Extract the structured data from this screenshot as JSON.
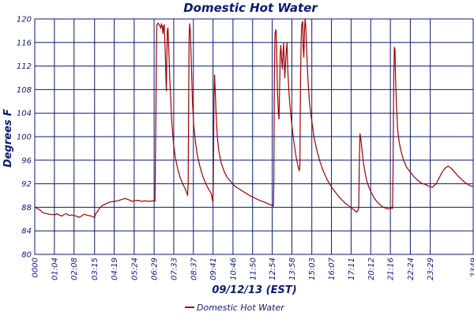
{
  "chart_data": {
    "type": "line",
    "title": "Domestic Hot Water",
    "xlabel": "09/12/13 (EST)",
    "ylabel": "Degrees F",
    "ylim": [
      80,
      120
    ],
    "yticks": [
      80,
      84,
      88,
      92,
      96,
      100,
      104,
      108,
      112,
      116,
      120
    ],
    "xlim": [
      0,
      1429
    ],
    "xticks": [
      {
        "label": "0000",
        "t": 0
      },
      {
        "label": "01:04",
        "t": 64
      },
      {
        "label": "02:08",
        "t": 128
      },
      {
        "label": "03:15",
        "t": 195
      },
      {
        "label": "04:19",
        "t": 259
      },
      {
        "label": "05:24",
        "t": 324
      },
      {
        "label": "06:29",
        "t": 389
      },
      {
        "label": "07:33",
        "t": 453
      },
      {
        "label": "08:37",
        "t": 517
      },
      {
        "label": "09:41",
        "t": 581
      },
      {
        "label": "10:46",
        "t": 646
      },
      {
        "label": "11:50",
        "t": 710
      },
      {
        "label": "12:54",
        "t": 774
      },
      {
        "label": "13:58",
        "t": 838
      },
      {
        "label": "15:03",
        "t": 903
      },
      {
        "label": "16:07",
        "t": 967
      },
      {
        "label": "17:11",
        "t": 1031
      },
      {
        "label": "20:12",
        "t": 1095
      },
      {
        "label": "21:16",
        "t": 1159
      },
      {
        "label": "22:24",
        "t": 1224
      },
      {
        "label": "23:29",
        "t": 1289
      },
      {
        "label": "2349",
        "t": 1429
      }
    ],
    "grid": true,
    "legend_position": "bottom",
    "series": [
      {
        "name": "Domestic Hot Water",
        "color": "#a00000",
        "points": [
          [
            0,
            88.1
          ],
          [
            8,
            87.8
          ],
          [
            16,
            87.6
          ],
          [
            24,
            87.2
          ],
          [
            32,
            87.0
          ],
          [
            40,
            86.9
          ],
          [
            48,
            86.8
          ],
          [
            56,
            86.8
          ],
          [
            64,
            86.7
          ],
          [
            72,
            86.9
          ],
          [
            80,
            86.7
          ],
          [
            88,
            86.5
          ],
          [
            96,
            86.8
          ],
          [
            104,
            86.9
          ],
          [
            112,
            86.6
          ],
          [
            120,
            86.7
          ],
          [
            128,
            86.6
          ],
          [
            136,
            86.5
          ],
          [
            144,
            86.3
          ],
          [
            152,
            86.5
          ],
          [
            160,
            86.8
          ],
          [
            168,
            86.7
          ],
          [
            176,
            86.6
          ],
          [
            184,
            86.5
          ],
          [
            190,
            86.4
          ],
          [
            195,
            86.2
          ],
          [
            198,
            86.9
          ],
          [
            204,
            87.2
          ],
          [
            210,
            87.8
          ],
          [
            220,
            88.3
          ],
          [
            232,
            88.6
          ],
          [
            245,
            88.9
          ],
          [
            259,
            89.0
          ],
          [
            270,
            89.1
          ],
          [
            282,
            89.3
          ],
          [
            294,
            89.5
          ],
          [
            305,
            89.3
          ],
          [
            318,
            89.0
          ],
          [
            324,
            89.1
          ],
          [
            336,
            89.2
          ],
          [
            348,
            89.0
          ],
          [
            360,
            89.1
          ],
          [
            372,
            89.0
          ],
          [
            385,
            89.1
          ],
          [
            392,
            89.0
          ],
          [
            393,
            94.0
          ],
          [
            395,
            105.0
          ],
          [
            397,
            117.0
          ],
          [
            398,
            119.0
          ],
          [
            402,
            119.3
          ],
          [
            407,
            118.9
          ],
          [
            411,
            118.4
          ],
          [
            413,
            119.2
          ],
          [
            416,
            118.6
          ],
          [
            418,
            117.5
          ],
          [
            420,
            118.8
          ],
          [
            422,
            119.0
          ],
          [
            424,
            116.0
          ],
          [
            426,
            113.0
          ],
          [
            428,
            109.0
          ],
          [
            429,
            107.8
          ],
          [
            430,
            112.0
          ],
          [
            432,
            118.0
          ],
          [
            434,
            118.5
          ],
          [
            436,
            116.0
          ],
          [
            440,
            110.0
          ],
          [
            446,
            103.0
          ],
          [
            452,
            99.0
          ],
          [
            458,
            96.5
          ],
          [
            466,
            94.5
          ],
          [
            474,
            93.0
          ],
          [
            482,
            92.0
          ],
          [
            490,
            91.2
          ],
          [
            496,
            90.4
          ],
          [
            498,
            90.0
          ],
          [
            500,
            92.0
          ],
          [
            502,
            110.0
          ],
          [
            503,
            117.0
          ],
          [
            505,
            119.2
          ],
          [
            507,
            118.0
          ],
          [
            510,
            113.0
          ],
          [
            514,
            106.0
          ],
          [
            518,
            102.0
          ],
          [
            524,
            99.0
          ],
          [
            530,
            96.8
          ],
          [
            538,
            95.0
          ],
          [
            546,
            93.5
          ],
          [
            554,
            92.4
          ],
          [
            562,
            91.5
          ],
          [
            570,
            90.8
          ],
          [
            576,
            90.2
          ],
          [
            579,
            89.2
          ],
          [
            580,
            89.0
          ],
          [
            582,
            92.0
          ],
          [
            584,
            106.0
          ],
          [
            586,
            110.5
          ],
          [
            588,
            108.0
          ],
          [
            591,
            104.0
          ],
          [
            595,
            100.0
          ],
          [
            600,
            97.5
          ],
          [
            608,
            95.5
          ],
          [
            618,
            94.0
          ],
          [
            628,
            93.0
          ],
          [
            640,
            92.3
          ],
          [
            652,
            91.6
          ],
          [
            664,
            91.2
          ],
          [
            676,
            90.8
          ],
          [
            688,
            90.4
          ],
          [
            700,
            90.0
          ],
          [
            712,
            89.7
          ],
          [
            724,
            89.4
          ],
          [
            736,
            89.1
          ],
          [
            748,
            88.9
          ],
          [
            760,
            88.6
          ],
          [
            770,
            88.4
          ],
          [
            776,
            88.3
          ],
          [
            778,
            88.2
          ],
          [
            779,
            92.0
          ],
          [
            781,
            110.0
          ],
          [
            783,
            117.5
          ],
          [
            786,
            118.2
          ],
          [
            788,
            116.0
          ],
          [
            791,
            108.0
          ],
          [
            794,
            104.0
          ],
          [
            796,
            103.0
          ],
          [
            798,
            108.0
          ],
          [
            800,
            114.0
          ],
          [
            802,
            115.5
          ],
          [
            805,
            113.0
          ],
          [
            807,
            111.5
          ],
          [
            809,
            114.0
          ],
          [
            811,
            116.0
          ],
          [
            813,
            113.0
          ],
          [
            815,
            110.0
          ],
          [
            817,
            112.0
          ],
          [
            819,
            114.0
          ],
          [
            822,
            116.0
          ],
          [
            825,
            111.0
          ],
          [
            829,
            107.0
          ],
          [
            834,
            104.0
          ],
          [
            840,
            101.0
          ],
          [
            846,
            98.5
          ],
          [
            852,
            96.5
          ],
          [
            858,
            95.0
          ],
          [
            862,
            94.2
          ],
          [
            864,
            95.0
          ],
          [
            866,
            108.0
          ],
          [
            868,
            116.0
          ],
          [
            870,
            119.0
          ],
          [
            873,
            119.6
          ],
          [
            875,
            115.0
          ],
          [
            877,
            113.5
          ],
          [
            879,
            118.0
          ],
          [
            881,
            120.0
          ],
          [
            883,
            119.0
          ],
          [
            886,
            115.0
          ],
          [
            890,
            110.0
          ],
          [
            895,
            106.0
          ],
          [
            902,
            103.0
          ],
          [
            910,
            100.0
          ],
          [
            918,
            98.0
          ],
          [
            928,
            96.0
          ],
          [
            940,
            94.2
          ],
          [
            952,
            92.8
          ],
          [
            964,
            91.7
          ],
          [
            976,
            90.8
          ],
          [
            988,
            90.0
          ],
          [
            1000,
            89.3
          ],
          [
            1012,
            88.7
          ],
          [
            1022,
            88.3
          ],
          [
            1032,
            87.9
          ],
          [
            1040,
            87.6
          ],
          [
            1048,
            87.2
          ],
          [
            1054,
            87.5
          ],
          [
            1056,
            88.0
          ],
          [
            1058,
            96.0
          ],
          [
            1060,
            100.5
          ],
          [
            1063,
            99.5
          ],
          [
            1066,
            98.0
          ],
          [
            1070,
            96.0
          ],
          [
            1076,
            94.0
          ],
          [
            1082,
            92.5
          ],
          [
            1090,
            91.3
          ],
          [
            1098,
            90.4
          ],
          [
            1106,
            89.6
          ],
          [
            1114,
            89.0
          ],
          [
            1122,
            88.6
          ],
          [
            1130,
            88.2
          ],
          [
            1138,
            88.0
          ],
          [
            1146,
            87.8
          ],
          [
            1154,
            87.7
          ],
          [
            1162,
            87.9
          ],
          [
            1166,
            87.8
          ],
          [
            1168,
            95.0
          ],
          [
            1170,
            110.0
          ],
          [
            1172,
            115.2
          ],
          [
            1174,
            114.8
          ],
          [
            1176,
            110.0
          ],
          [
            1179,
            105.0
          ],
          [
            1183,
            101.0
          ],
          [
            1188,
            99.0
          ],
          [
            1194,
            97.5
          ],
          [
            1202,
            96.0
          ],
          [
            1212,
            94.8
          ],
          [
            1224,
            94.0
          ],
          [
            1236,
            93.2
          ],
          [
            1248,
            92.6
          ],
          [
            1260,
            92.1
          ],
          [
            1272,
            91.9
          ],
          [
            1284,
            91.6
          ],
          [
            1296,
            91.4
          ],
          [
            1300,
            91.6
          ],
          [
            1308,
            92.0
          ],
          [
            1318,
            93.0
          ],
          [
            1328,
            94.0
          ],
          [
            1338,
            94.7
          ],
          [
            1348,
            95.0
          ],
          [
            1358,
            94.6
          ],
          [
            1368,
            94.0
          ],
          [
            1378,
            93.4
          ],
          [
            1388,
            92.9
          ],
          [
            1398,
            92.4
          ],
          [
            1408,
            92.0
          ],
          [
            1418,
            91.7
          ],
          [
            1429,
            91.5
          ]
        ]
      }
    ]
  }
}
